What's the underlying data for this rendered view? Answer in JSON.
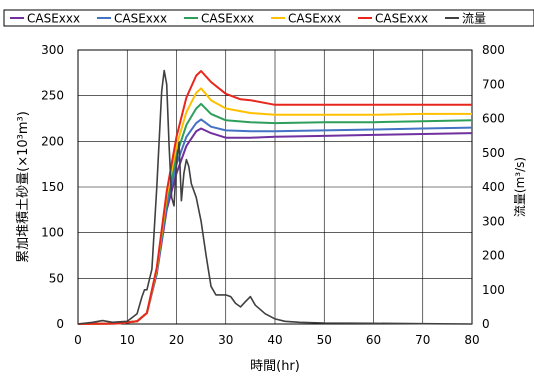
{
  "chart_data": {
    "type": "line",
    "xlabel": "時間(hr)",
    "ylabel_left": "累加堆積土砂量(×10³m³)",
    "ylabel_right": "流量(m³/s)",
    "xlim": [
      0,
      80
    ],
    "ylim_left": [
      0,
      300
    ],
    "ylim_right": [
      0,
      800
    ],
    "x_ticks": [
      0,
      10,
      20,
      30,
      40,
      50,
      60,
      70,
      80
    ],
    "y_left_ticks": [
      0,
      50,
      100,
      150,
      200,
      250,
      300
    ],
    "y_right_ticks": [
      0,
      100,
      200,
      300,
      400,
      500,
      600,
      700,
      800
    ],
    "grid": true,
    "legend_position": "top",
    "series": [
      {
        "name": "CASExxx",
        "color": "#7030a0",
        "axis": "left",
        "x": [
          0,
          8,
          12,
          14,
          16,
          18,
          20,
          22,
          24,
          25,
          27,
          30,
          35,
          40,
          50,
          60,
          70,
          80
        ],
        "y": [
          0,
          0.5,
          3,
          12,
          55,
          125,
          165,
          195,
          211,
          214,
          209,
          204,
          204,
          205,
          206,
          207,
          208,
          209
        ]
      },
      {
        "name": "CASExxx",
        "color": "#4472c4",
        "axis": "left",
        "x": [
          0,
          8,
          12,
          14,
          16,
          18,
          20,
          22,
          24,
          25,
          27,
          30,
          35,
          40,
          50,
          60,
          70,
          80
        ],
        "y": [
          0,
          0.5,
          3,
          12,
          57,
          130,
          175,
          205,
          220,
          224,
          216,
          212,
          211,
          211,
          212,
          213,
          214,
          215
        ]
      },
      {
        "name": "CASExxx",
        "color": "#2e9e5b",
        "axis": "left",
        "x": [
          0,
          8,
          12,
          14,
          16,
          18,
          20,
          22,
          24,
          25,
          27,
          30,
          35,
          40,
          50,
          60,
          70,
          80
        ],
        "y": [
          0,
          0.5,
          3,
          12,
          58,
          135,
          185,
          218,
          236,
          241,
          230,
          223,
          221,
          220,
          221,
          221,
          222,
          223
        ]
      },
      {
        "name": "CASExxx",
        "color": "#ffc000",
        "axis": "left",
        "x": [
          0,
          8,
          12,
          14,
          16,
          18,
          20,
          22,
          24,
          25,
          27,
          30,
          35,
          40,
          50,
          60,
          70,
          80
        ],
        "y": [
          0,
          0.5,
          3,
          12,
          60,
          140,
          195,
          232,
          253,
          258,
          245,
          236,
          231,
          229,
          229,
          229,
          230,
          230
        ]
      },
      {
        "name": "CASExxx",
        "color": "#e8261c",
        "axis": "left",
        "x": [
          0,
          8,
          12,
          14,
          16,
          18,
          20,
          22,
          24,
          25,
          27,
          30,
          33,
          35,
          40,
          50,
          60,
          70,
          80
        ],
        "y": [
          0,
          0.5,
          3,
          12,
          62,
          145,
          205,
          248,
          272,
          277,
          265,
          252,
          246,
          245,
          240,
          240,
          240,
          240,
          240
        ]
      },
      {
        "name": "流量",
        "color": "#404040",
        "axis": "right",
        "x": [
          0,
          3,
          5,
          7,
          10,
          12,
          13,
          13.5,
          14,
          15,
          16,
          17,
          17.5,
          18,
          18.5,
          19,
          19.5,
          20,
          20.5,
          21,
          21.5,
          22,
          22.5,
          23,
          24,
          25,
          26,
          27,
          28,
          30,
          31,
          32,
          33,
          34,
          35,
          36,
          38,
          40,
          42,
          45,
          50,
          60,
          70,
          80
        ],
        "y": [
          0,
          5,
          10,
          5,
          8,
          30,
          80,
          100,
          100,
          160,
          400,
          680,
          740,
          700,
          520,
          370,
          345,
          470,
          530,
          360,
          440,
          480,
          460,
          410,
          370,
          300,
          200,
          110,
          85,
          85,
          80,
          60,
          50,
          65,
          80,
          55,
          30,
          15,
          8,
          5,
          3,
          2,
          1,
          0
        ]
      }
    ]
  }
}
